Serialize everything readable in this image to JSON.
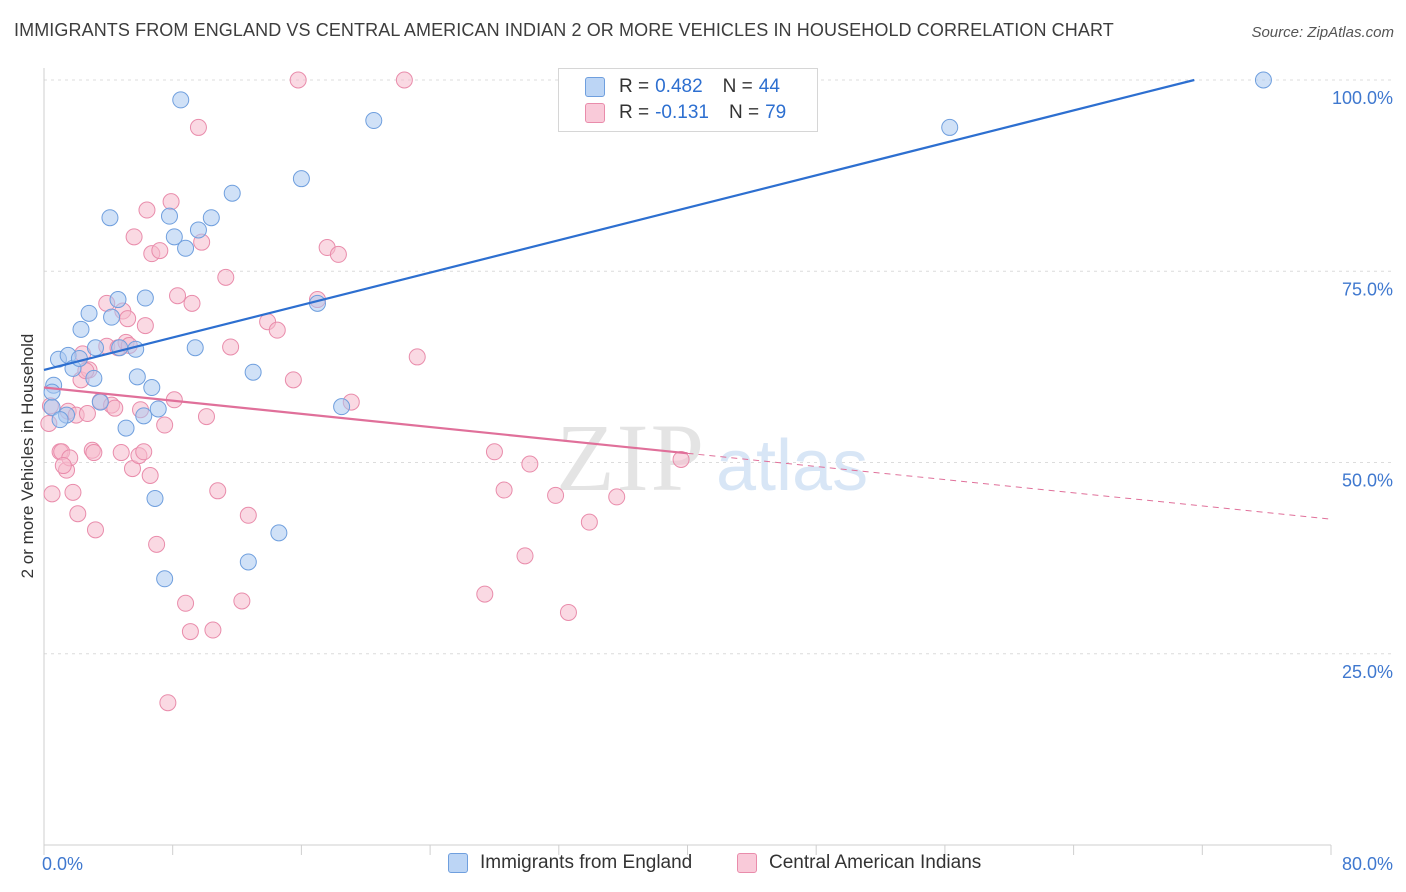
{
  "header": {
    "title": "IMMIGRANTS FROM ENGLAND VS CENTRAL AMERICAN INDIAN 2 OR MORE VEHICLES IN HOUSEHOLD CORRELATION CHART",
    "source": "Source: ZipAtlas.com"
  },
  "legend": {
    "rows": [
      {
        "r_label": "R = ",
        "r_value": "0.482",
        "n_label": "N = ",
        "n_value": "44"
      },
      {
        "r_label": "R = ",
        "r_value": "-0.131",
        "n_label": "N = ",
        "n_value": "79"
      }
    ],
    "bottom": [
      "Immigrants from England",
      "Central American Indians"
    ]
  },
  "watermark": {
    "zip": "ZIP",
    "atlas": "atlas"
  },
  "colors": {
    "england_fill": "#a9c8f1",
    "england_stroke": "#6f9fde",
    "england_line": "#2d6fd0",
    "cai_fill": "#f6b9cc",
    "cai_stroke": "#e98cab",
    "cai_line": "#e0709a",
    "axis_label": "#3f78cf"
  },
  "chart_data": {
    "type": "scatter",
    "title": "IMMIGRANTS FROM ENGLAND VS CENTRAL AMERICAN INDIAN 2 OR MORE VEHICLES IN HOUSEHOLD CORRELATION CHART",
    "xlabel": "",
    "ylabel": "2 or more Vehicles in Household",
    "xlim": [
      0,
      80
    ],
    "ylim": [
      0,
      103
    ],
    "x_tick_labels": [
      "0.0%",
      "80.0%"
    ],
    "y_ticks": [
      25,
      50,
      75,
      100
    ],
    "y_tick_labels": [
      "25.0%",
      "50.0%",
      "75.0%",
      "100.0%"
    ],
    "grid": "horizontal dashed",
    "series": [
      {
        "name": "Immigrants from England",
        "r": 0.482,
        "n": 44,
        "trend": {
          "x": [
            0,
            71.5
          ],
          "y": [
            62.1,
            100.0
          ]
        },
        "points": [
          [
            0.5,
            57.2
          ],
          [
            0.6,
            60.1
          ],
          [
            0.9,
            63.5
          ],
          [
            1.4,
            56.2
          ],
          [
            1.5,
            64.0
          ],
          [
            1.8,
            62.3
          ],
          [
            2.2,
            63.6
          ],
          [
            2.3,
            67.4
          ],
          [
            2.8,
            69.5
          ],
          [
            3.1,
            61.0
          ],
          [
            3.2,
            65.0
          ],
          [
            3.5,
            57.9
          ],
          [
            4.1,
            82.0
          ],
          [
            4.2,
            69.0
          ],
          [
            4.6,
            71.3
          ],
          [
            4.7,
            65.0
          ],
          [
            5.1,
            54.5
          ],
          [
            5.7,
            64.8
          ],
          [
            5.8,
            61.2
          ],
          [
            6.3,
            71.5
          ],
          [
            6.2,
            56.1
          ],
          [
            6.7,
            59.8
          ],
          [
            6.9,
            45.3
          ],
          [
            7.1,
            57.0
          ],
          [
            7.5,
            34.8
          ],
          [
            7.8,
            82.2
          ],
          [
            8.1,
            79.5
          ],
          [
            8.5,
            97.4
          ],
          [
            8.8,
            78.0
          ],
          [
            9.4,
            65.0
          ],
          [
            9.6,
            80.4
          ],
          [
            10.4,
            82.0
          ],
          [
            11.7,
            85.2
          ],
          [
            12.7,
            37.0
          ],
          [
            13.0,
            61.8
          ],
          [
            14.6,
            40.8
          ],
          [
            16.0,
            87.1
          ],
          [
            17.0,
            70.8
          ],
          [
            18.5,
            57.3
          ],
          [
            20.5,
            94.7
          ],
          [
            56.3,
            93.8
          ],
          [
            75.8,
            100.0
          ],
          [
            0.5,
            59.2
          ],
          [
            1.0,
            55.6
          ]
        ]
      },
      {
        "name": "Central American Indians",
        "r": -0.131,
        "n": 79,
        "trend": {
          "x": [
            0,
            40
          ],
          "y": [
            59.8,
            51.2
          ]
        },
        "trend_dashed": {
          "x": [
            40,
            80
          ],
          "y": [
            51.2,
            42.6
          ]
        },
        "points": [
          [
            0.3,
            55.1
          ],
          [
            0.4,
            57.4
          ],
          [
            0.5,
            45.9
          ],
          [
            1.0,
            51.4
          ],
          [
            1.1,
            51.4
          ],
          [
            1.4,
            49.0
          ],
          [
            1.5,
            56.7
          ],
          [
            1.6,
            50.6
          ],
          [
            1.8,
            46.1
          ],
          [
            2.0,
            56.2
          ],
          [
            2.1,
            43.3
          ],
          [
            2.3,
            60.8
          ],
          [
            2.4,
            64.2
          ],
          [
            2.7,
            56.4
          ],
          [
            2.8,
            62.1
          ],
          [
            3.0,
            51.6
          ],
          [
            3.2,
            41.2
          ],
          [
            3.5,
            58.0
          ],
          [
            3.9,
            70.8
          ],
          [
            3.9,
            65.2
          ],
          [
            4.2,
            57.5
          ],
          [
            4.4,
            57.1
          ],
          [
            4.6,
            65.0
          ],
          [
            4.8,
            51.3
          ],
          [
            4.9,
            69.8
          ],
          [
            5.1,
            65.7
          ],
          [
            5.2,
            68.8
          ],
          [
            5.5,
            49.2
          ],
          [
            5.6,
            79.5
          ],
          [
            5.9,
            50.9
          ],
          [
            6.2,
            51.4
          ],
          [
            6.3,
            67.9
          ],
          [
            6.4,
            83.0
          ],
          [
            6.6,
            48.3
          ],
          [
            6.7,
            77.3
          ],
          [
            7.0,
            39.3
          ],
          [
            7.2,
            77.7
          ],
          [
            7.5,
            54.9
          ],
          [
            7.9,
            84.1
          ],
          [
            8.1,
            58.2
          ],
          [
            8.3,
            71.8
          ],
          [
            8.8,
            31.6
          ],
          [
            9.1,
            27.9
          ],
          [
            9.2,
            70.8
          ],
          [
            9.6,
            93.8
          ],
          [
            9.8,
            78.8
          ],
          [
            10.1,
            56.0
          ],
          [
            10.5,
            28.1
          ],
          [
            10.8,
            46.3
          ],
          [
            11.3,
            74.2
          ],
          [
            11.6,
            65.1
          ],
          [
            12.3,
            31.9
          ],
          [
            12.7,
            43.1
          ],
          [
            13.9,
            68.4
          ],
          [
            14.5,
            67.3
          ],
          [
            15.5,
            60.8
          ],
          [
            15.8,
            100.0
          ],
          [
            17.0,
            71.3
          ],
          [
            17.6,
            78.1
          ],
          [
            18.3,
            77.2
          ],
          [
            19.1,
            57.9
          ],
          [
            22.4,
            100.0
          ],
          [
            23.2,
            63.8
          ],
          [
            27.4,
            32.8
          ],
          [
            28.0,
            51.4
          ],
          [
            28.6,
            46.4
          ],
          [
            29.9,
            37.8
          ],
          [
            30.2,
            49.8
          ],
          [
            31.8,
            45.7
          ],
          [
            32.6,
            30.4
          ],
          [
            33.9,
            42.2
          ],
          [
            35.6,
            45.5
          ],
          [
            39.6,
            50.4
          ],
          [
            7.7,
            18.6
          ],
          [
            3.1,
            51.3
          ],
          [
            5.3,
            65.3
          ],
          [
            2.6,
            62.0
          ],
          [
            1.2,
            49.6
          ],
          [
            6.0,
            56.9
          ]
        ]
      }
    ]
  }
}
